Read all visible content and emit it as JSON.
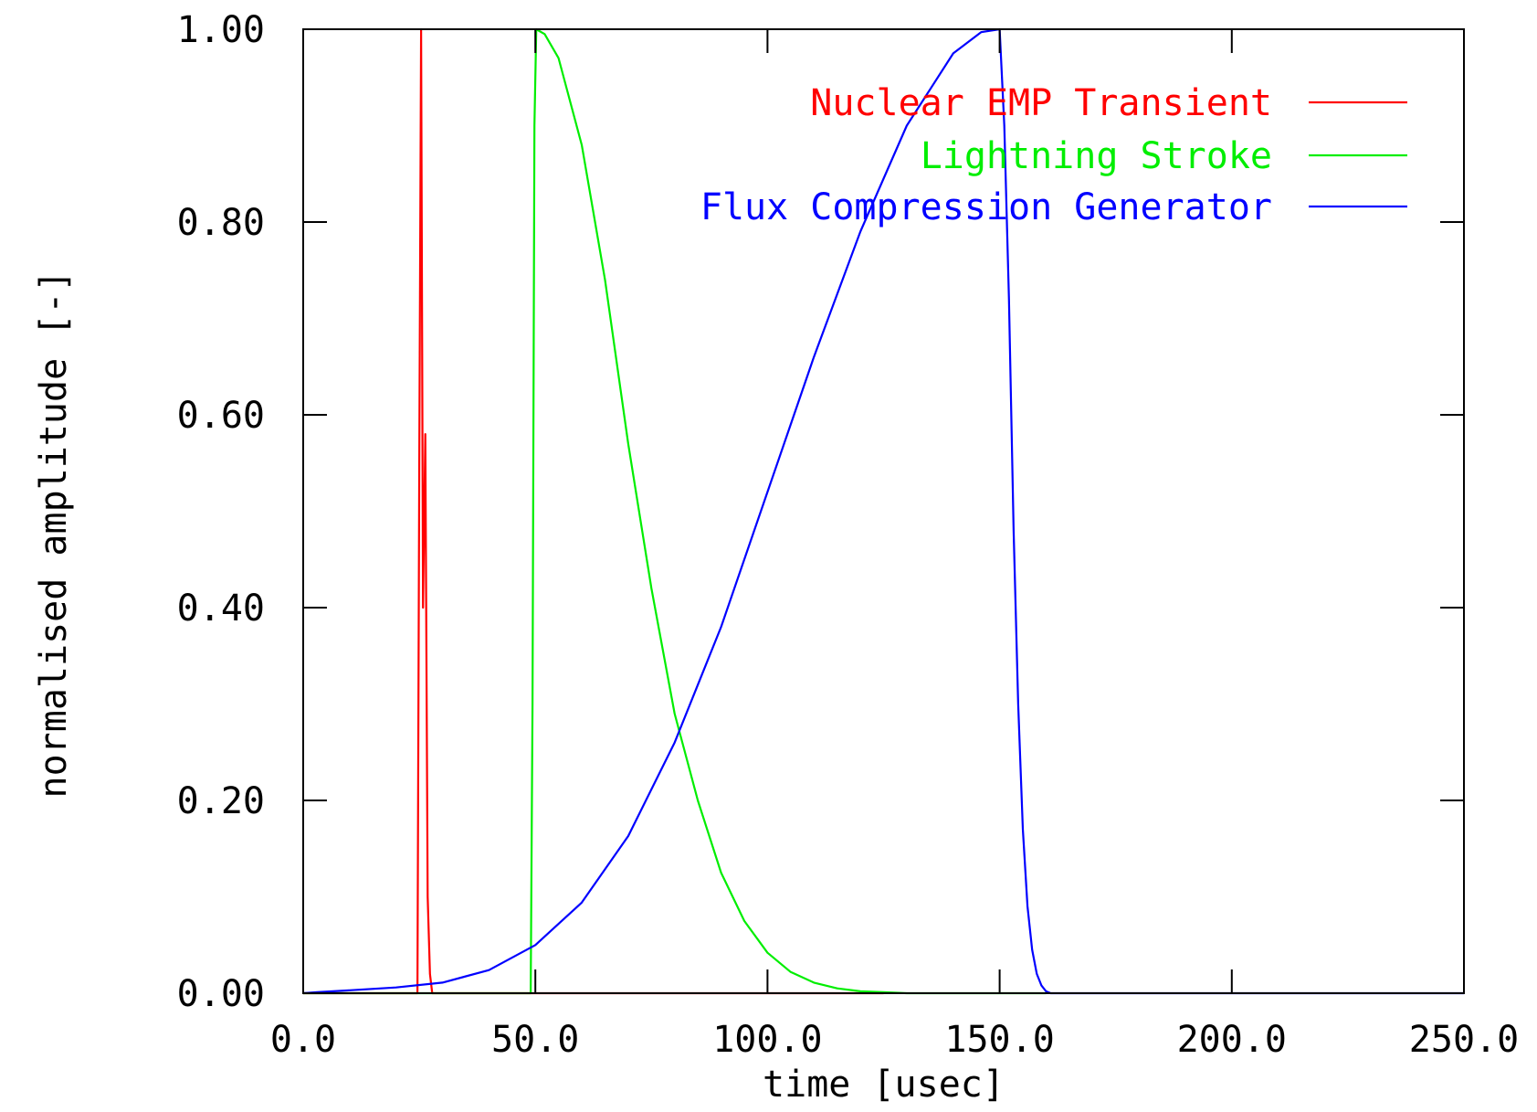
{
  "chart_data": {
    "type": "line",
    "title": "",
    "xlabel": "time [usec]",
    "ylabel": "normalised amplitude [-]",
    "xlim": [
      0,
      250
    ],
    "ylim": [
      0,
      1
    ],
    "x_ticks": [
      0,
      50,
      100,
      150,
      200,
      250
    ],
    "x_tick_labels": [
      "0.0",
      "50.0",
      "100.0",
      "150.0",
      "200.0",
      "250.0"
    ],
    "y_ticks": [
      0,
      0.2,
      0.4,
      0.6,
      0.8,
      1.0
    ],
    "y_tick_labels": [
      "0.00",
      "0.20",
      "0.40",
      "0.60",
      "0.80",
      "1.00"
    ],
    "grid": false,
    "legend_position": "top-right",
    "series": [
      {
        "name": "Nuclear EMP Transient",
        "color": "#ff0000",
        "points": [
          [
            0,
            0
          ],
          [
            24.6,
            0
          ],
          [
            25.0,
            0.55
          ],
          [
            25.4,
            1.0
          ],
          [
            25.8,
            0.4
          ],
          [
            26.3,
            0.58
          ],
          [
            26.8,
            0.1
          ],
          [
            27.3,
            0.02
          ],
          [
            27.8,
            0
          ],
          [
            49,
            0
          ],
          [
            125,
            0
          ]
        ]
      },
      {
        "name": "Lightning Stroke",
        "color": "#00ee00",
        "points": [
          [
            0,
            0
          ],
          [
            49,
            0
          ],
          [
            49.4,
            0.3
          ],
          [
            49.8,
            0.9
          ],
          [
            50.2,
            1.0
          ],
          [
            52,
            0.995
          ],
          [
            55,
            0.97
          ],
          [
            60,
            0.88
          ],
          [
            65,
            0.74
          ],
          [
            70,
            0.57
          ],
          [
            75,
            0.42
          ],
          [
            80,
            0.29
          ],
          [
            85,
            0.2
          ],
          [
            90,
            0.125
          ],
          [
            95,
            0.075
          ],
          [
            100,
            0.042
          ],
          [
            105,
            0.022
          ],
          [
            110,
            0.011
          ],
          [
            115,
            0.005
          ],
          [
            120,
            0.002
          ],
          [
            125,
            0.001
          ],
          [
            130,
            0
          ],
          [
            160,
            0
          ]
        ]
      },
      {
        "name": "Flux Compression Generator",
        "color": "#0000ff",
        "points": [
          [
            0,
            0
          ],
          [
            3,
            0.001
          ],
          [
            10,
            0.003
          ],
          [
            20,
            0.006
          ],
          [
            30,
            0.011
          ],
          [
            40,
            0.024
          ],
          [
            50,
            0.05
          ],
          [
            60,
            0.094
          ],
          [
            70,
            0.163
          ],
          [
            80,
            0.26
          ],
          [
            90,
            0.38
          ],
          [
            100,
            0.52
          ],
          [
            110,
            0.66
          ],
          [
            120,
            0.79
          ],
          [
            130,
            0.9
          ],
          [
            140,
            0.975
          ],
          [
            146,
            0.997
          ],
          [
            150,
            1.0
          ],
          [
            151,
            0.9
          ],
          [
            152,
            0.72
          ],
          [
            153,
            0.48
          ],
          [
            154,
            0.3
          ],
          [
            155,
            0.17
          ],
          [
            156,
            0.09
          ],
          [
            157,
            0.045
          ],
          [
            158,
            0.02
          ],
          [
            159,
            0.008
          ],
          [
            160,
            0.002
          ],
          [
            161,
            0
          ],
          [
            250,
            0
          ]
        ]
      }
    ]
  }
}
